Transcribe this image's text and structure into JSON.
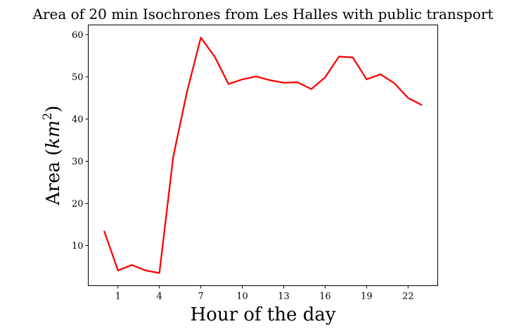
{
  "chart_data": {
    "type": "line",
    "title": "Area of 20 min Isochrones from Les Halles with public transport",
    "xlabel": "Hour of the day",
    "ylabel_main": "Area (",
    "ylabel_unit_base": "km",
    "ylabel_unit_exp": "2",
    "ylabel_close": ")",
    "x_ticks": [
      1,
      4,
      7,
      10,
      13,
      16,
      19,
      22
    ],
    "y_ticks": [
      10,
      20,
      30,
      40,
      50,
      60
    ],
    "xlim": [
      -1.15,
      24.15
    ],
    "ylim": [
      0.5,
      62.3
    ],
    "grid": false,
    "series": [
      {
        "color": "#ff0000",
        "x": [
          0,
          1,
          2,
          3,
          4,
          5,
          6,
          7,
          8,
          9,
          10,
          11,
          12,
          13,
          14,
          15,
          16,
          17,
          18,
          19,
          20,
          21,
          22,
          23
        ],
        "values": [
          13.5,
          4.1,
          5.4,
          4.1,
          3.5,
          31.0,
          46.5,
          59.3,
          54.8,
          48.3,
          49.4,
          50.1,
          49.2,
          48.6,
          48.7,
          47.1,
          49.9,
          54.8,
          54.6,
          49.4,
          50.6,
          48.5,
          45.0,
          43.3
        ]
      }
    ]
  }
}
